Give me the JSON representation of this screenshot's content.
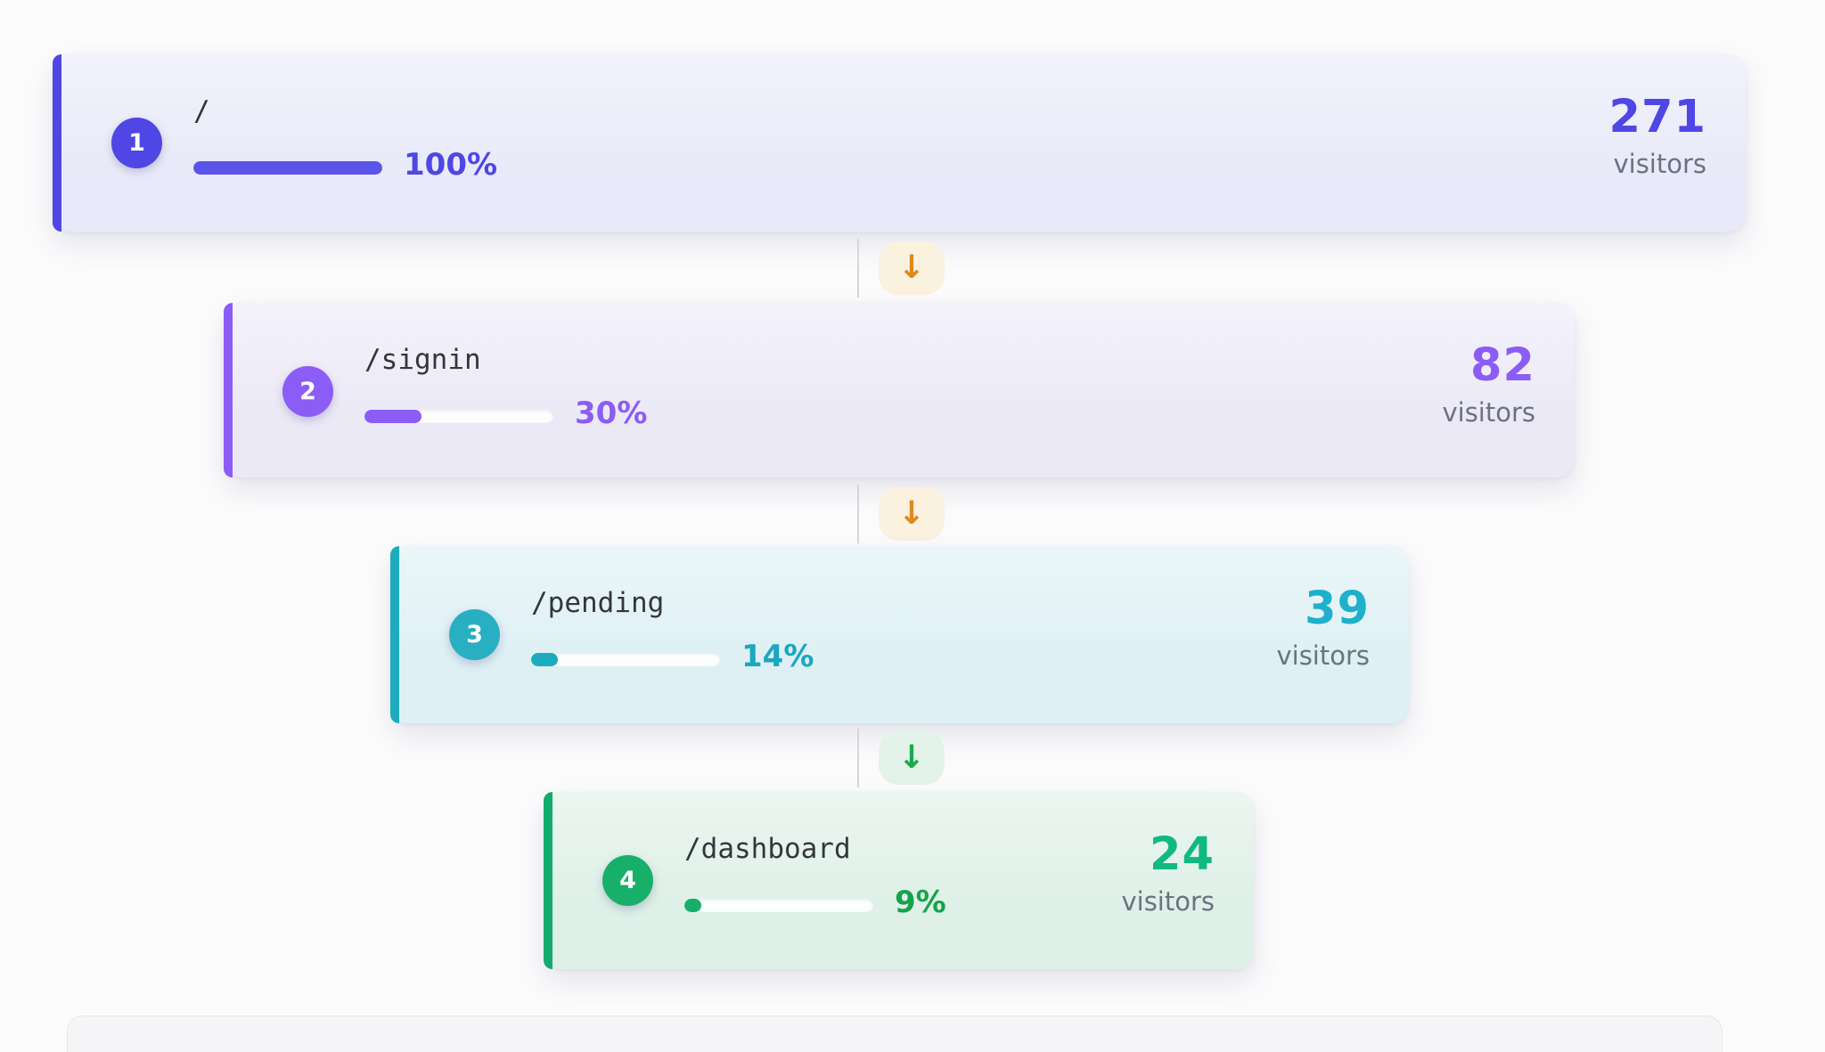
{
  "funnel": {
    "steps": [
      {
        "index": "1",
        "path": "/",
        "percent_label": "100%",
        "percent_value": 100,
        "visitors": "271",
        "visitors_label": "visitors",
        "accent_color": "#4f46e5",
        "background_color": "#e9eaf9"
      },
      {
        "index": "2",
        "path": "/signin",
        "percent_label": "30%",
        "percent_value": 30,
        "visitors": "82",
        "visitors_label": "visitors",
        "accent_color": "#8b5cf6",
        "background_color": "#ece9f7"
      },
      {
        "index": "3",
        "path": "/pending",
        "percent_label": "14%",
        "percent_value": 14,
        "visitors": "39",
        "visitors_label": "visitors",
        "accent_color": "#1cacbe",
        "background_color": "#def0f4"
      },
      {
        "index": "4",
        "path": "/dashboard",
        "percent_label": "9%",
        "percent_value": 9,
        "visitors": "24",
        "visitors_label": "visitors",
        "accent_color": "#13ac6d",
        "background_color": "#def0e7"
      }
    ],
    "connectors": [
      {
        "arrow": "↓",
        "color": "#e2861f",
        "background": "#faf1df"
      },
      {
        "arrow": "↓",
        "color": "#e2861f",
        "background": "#faf1df"
      },
      {
        "arrow": "↓",
        "color": "#1ba94c",
        "background": "#e4f3e9"
      }
    ]
  },
  "chart_data": {
    "type": "bar",
    "subtype": "funnel",
    "orientation": "horizontal",
    "title": "",
    "categories": [
      "/",
      "/signin",
      "/pending",
      "/dashboard"
    ],
    "series": [
      {
        "name": "visitors",
        "values": [
          271,
          82,
          39,
          24
        ]
      },
      {
        "name": "percent_of_total",
        "values": [
          100,
          30,
          14,
          9
        ]
      }
    ],
    "step_colors": [
      "#4f46e5",
      "#8b5cf6",
      "#1cacbe",
      "#13ac6d"
    ],
    "legend": "none",
    "grid": false
  }
}
